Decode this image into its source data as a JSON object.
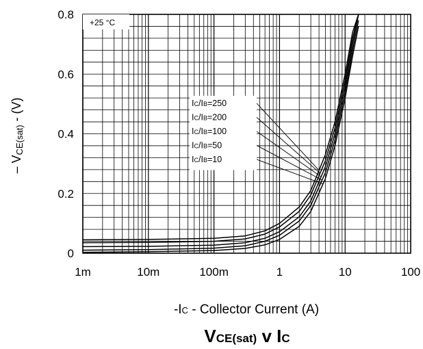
{
  "chart_data": {
    "type": "line",
    "title": {
      "main": "V",
      "main_sub": "CE(sat)",
      "mid": " v I",
      "end_sub": "C"
    },
    "xlabel": {
      "pre": "-I",
      "sub": "C",
      "post": " - Collector Current (A)"
    },
    "ylabel": {
      "pre": "– V",
      "sub": "CE(sat)",
      "post": " - (V)"
    },
    "x_scale": "log",
    "xlim": [
      0.001,
      100
    ],
    "ylim": [
      0,
      0.8
    ],
    "x_ticks": [
      {
        "value": 0.001,
        "label": "1m"
      },
      {
        "value": 0.01,
        "label": "10m"
      },
      {
        "value": 0.1,
        "label": "100m"
      },
      {
        "value": 1,
        "label": "1"
      },
      {
        "value": 10,
        "label": "10"
      },
      {
        "value": 100,
        "label": "100"
      }
    ],
    "y_ticks": [
      {
        "value": 0,
        "label": "0"
      },
      {
        "value": 0.2,
        "label": "0.2"
      },
      {
        "value": 0.4,
        "label": "0.4"
      },
      {
        "value": 0.6,
        "label": "0.6"
      },
      {
        "value": 0.8,
        "label": "0.8"
      }
    ],
    "grid": true,
    "annotation": "+25 °C",
    "legend_placement": "center",
    "series": [
      {
        "label_pre": "I",
        "label_sub1": "C",
        "label_mid": "/I",
        "label_sub2": "B",
        "label_post": "=250",
        "x": [
          0.001,
          0.01,
          0.1,
          0.3,
          0.6,
          1,
          2,
          3,
          5,
          7,
          10,
          13,
          16
        ],
        "y": [
          0.045,
          0.046,
          0.05,
          0.058,
          0.075,
          0.1,
          0.155,
          0.21,
          0.33,
          0.44,
          0.6,
          0.74,
          0.8
        ]
      },
      {
        "label_pre": "I",
        "label_sub1": "C",
        "label_mid": "/I",
        "label_sub2": "B",
        "label_post": "=200",
        "x": [
          0.001,
          0.01,
          0.1,
          0.3,
          0.6,
          1,
          2,
          3,
          5,
          7,
          10,
          13,
          16
        ],
        "y": [
          0.035,
          0.036,
          0.04,
          0.048,
          0.064,
          0.088,
          0.14,
          0.195,
          0.31,
          0.42,
          0.58,
          0.72,
          0.8
        ]
      },
      {
        "label_pre": "I",
        "label_sub1": "C",
        "label_mid": "/I",
        "label_sub2": "B",
        "label_post": "=100",
        "x": [
          0.001,
          0.01,
          0.1,
          0.3,
          0.6,
          1,
          2,
          3,
          5,
          7,
          10,
          13,
          16
        ],
        "y": [
          0.022,
          0.023,
          0.027,
          0.035,
          0.05,
          0.072,
          0.122,
          0.175,
          0.29,
          0.4,
          0.56,
          0.7,
          0.8
        ]
      },
      {
        "label_pre": "I",
        "label_sub1": "C",
        "label_mid": "/I",
        "label_sub2": "B",
        "label_post": "=50",
        "x": [
          0.001,
          0.01,
          0.1,
          0.3,
          0.6,
          1,
          2,
          3,
          5,
          7,
          10,
          13,
          16
        ],
        "y": [
          0.01,
          0.012,
          0.017,
          0.025,
          0.04,
          0.06,
          0.108,
          0.16,
          0.27,
          0.38,
          0.54,
          0.68,
          0.78
        ]
      },
      {
        "label_pre": "I",
        "label_sub1": "C",
        "label_mid": "/I",
        "label_sub2": "B",
        "label_post": "=10",
        "x": [
          0.001,
          0.01,
          0.1,
          0.3,
          0.6,
          1,
          2,
          3,
          5,
          7,
          10,
          13,
          16
        ],
        "y": [
          0.003,
          0.005,
          0.009,
          0.016,
          0.028,
          0.046,
          0.09,
          0.14,
          0.25,
          0.36,
          0.52,
          0.66,
          0.76
        ]
      }
    ]
  }
}
